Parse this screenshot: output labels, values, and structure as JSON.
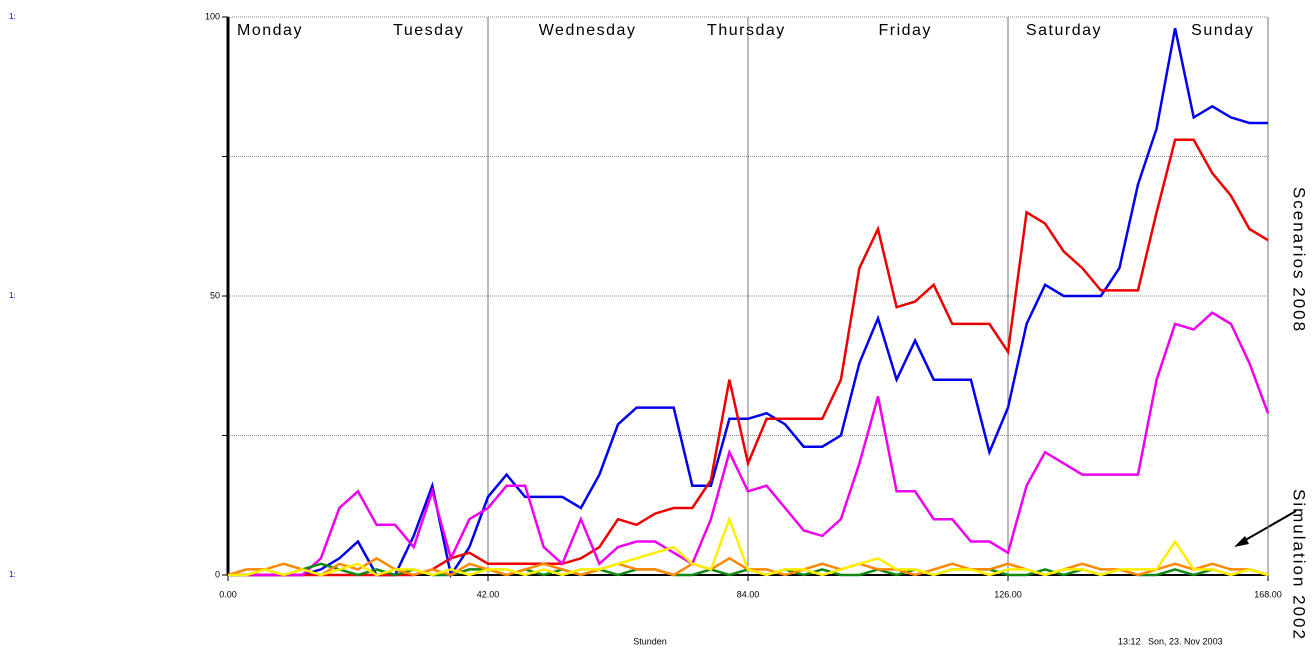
{
  "chart_data": {
    "type": "line",
    "scale_markers": [
      "1:",
      "1:",
      "1:"
    ],
    "day_labels": [
      "Monday",
      "Tuesday",
      "Wednesday",
      "Thursday",
      "Friday",
      "Saturday",
      "Sunday"
    ],
    "xlabel": "Stunden",
    "timestamp": "13:12   Son, 23. Nov 2003",
    "annotations": [
      "Scenarios 2008",
      "Simulation 2002"
    ],
    "xlim": [
      0,
      168
    ],
    "xticks": [
      {
        "value": 0,
        "label": "0.00"
      },
      {
        "value": 42,
        "label": "42.00"
      },
      {
        "value": 84,
        "label": "84.00"
      },
      {
        "value": 126,
        "label": "126.00"
      },
      {
        "value": 168,
        "label": "168.00"
      }
    ],
    "ylim": [
      0,
      100
    ],
    "yticks": [
      0,
      50,
      100
    ],
    "minor_grid": [
      25,
      75
    ],
    "grid": true,
    "x": [
      0,
      3,
      6,
      9,
      12,
      15,
      18,
      21,
      24,
      27,
      30,
      33,
      36,
      39,
      42,
      45,
      48,
      51,
      54,
      57,
      60,
      63,
      66,
      69,
      72,
      75,
      78,
      81,
      84,
      87,
      90,
      93,
      96,
      99,
      102,
      105,
      108,
      111,
      114,
      117,
      120,
      123,
      126,
      129,
      132,
      135,
      138,
      141,
      144,
      147,
      150,
      153,
      156,
      159,
      162,
      165,
      168
    ],
    "series": [
      {
        "color": "#0000ee",
        "values": [
          0,
          0,
          0,
          0,
          0,
          1,
          3,
          6,
          0,
          0,
          7,
          16,
          0,
          5,
          14,
          18,
          14,
          14,
          14,
          12,
          18,
          27,
          30,
          30,
          30,
          16,
          16,
          28,
          28,
          29,
          27,
          23,
          23,
          25,
          38,
          46,
          35,
          42,
          35,
          35,
          35,
          22,
          30,
          45,
          52,
          50,
          50,
          50,
          55,
          70,
          80,
          98,
          82,
          84,
          82,
          81,
          81
        ]
      },
      {
        "color": "#ee0000",
        "values": [
          0,
          0,
          0,
          0,
          0,
          0,
          0,
          0,
          0,
          0,
          0,
          1,
          3,
          4,
          2,
          2,
          2,
          2,
          2,
          3,
          5,
          10,
          9,
          11,
          12,
          12,
          17,
          35,
          20,
          28,
          28,
          28,
          28,
          35,
          55,
          62,
          48,
          49,
          52,
          45,
          45,
          45,
          40,
          65,
          63,
          58,
          55,
          51,
          51,
          51,
          65,
          78,
          78,
          72,
          68,
          62,
          60
        ]
      },
      {
        "color": "#ee00ee",
        "values": [
          0,
          0,
          0,
          0,
          0,
          3,
          12,
          15,
          9,
          9,
          5,
          15,
          3,
          10,
          12,
          16,
          16,
          5,
          2,
          10,
          2,
          5,
          6,
          6,
          4,
          2,
          10,
          22,
          15,
          16,
          12,
          8,
          7,
          10,
          20,
          32,
          15,
          15,
          10,
          10,
          6,
          6,
          4,
          16,
          22,
          20,
          18,
          18,
          18,
          18,
          35,
          45,
          44,
          47,
          45,
          38,
          29
        ]
      },
      {
        "color": "#118811",
        "values": [
          0,
          0,
          1,
          0,
          1,
          2,
          1,
          0,
          1,
          0,
          1,
          0,
          0,
          1,
          1,
          0,
          1,
          0,
          1,
          0,
          1,
          0,
          1,
          1,
          0,
          0,
          1,
          0,
          1,
          0,
          1,
          0,
          1,
          0,
          0,
          1,
          0,
          1,
          0,
          1,
          1,
          1,
          0,
          0,
          1,
          0,
          1,
          0,
          1,
          0,
          0,
          1,
          0,
          1,
          0,
          1,
          0
        ]
      },
      {
        "color": "#ff8800",
        "values": [
          0,
          1,
          1,
          2,
          1,
          0,
          2,
          1,
          3,
          1,
          0,
          1,
          0,
          2,
          1,
          0,
          1,
          2,
          1,
          0,
          1,
          2,
          1,
          1,
          0,
          2,
          1,
          3,
          1,
          1,
          0,
          1,
          2,
          1,
          2,
          1,
          1,
          0,
          1,
          2,
          1,
          1,
          2,
          1,
          0,
          1,
          2,
          1,
          1,
          0,
          1,
          2,
          1,
          2,
          1,
          1,
          0
        ]
      },
      {
        "color": "#ffee00",
        "values": [
          0,
          0,
          1,
          0,
          1,
          0,
          1,
          2,
          0,
          1,
          1,
          0,
          1,
          0,
          1,
          1,
          0,
          1,
          0,
          1,
          1,
          2,
          3,
          4,
          5,
          2,
          1,
          10,
          1,
          0,
          1,
          1,
          0,
          1,
          2,
          3,
          1,
          1,
          0,
          1,
          1,
          0,
          1,
          1,
          0,
          1,
          1,
          0,
          1,
          1,
          1,
          6,
          1,
          1,
          0,
          1,
          0
        ]
      }
    ]
  }
}
